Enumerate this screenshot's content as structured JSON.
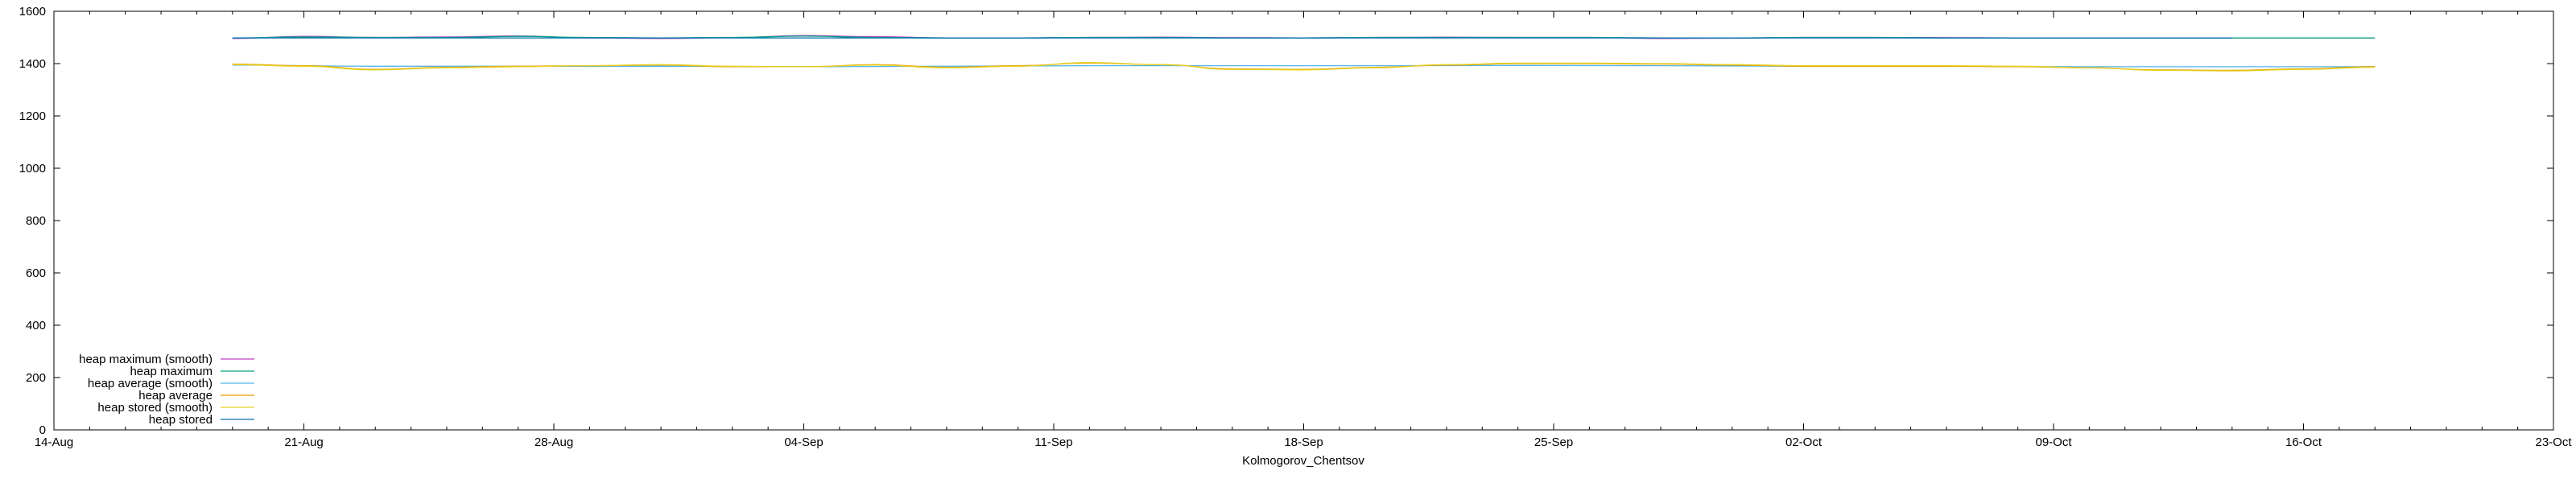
{
  "chart_data": {
    "type": "line",
    "title": "",
    "xlabel": "Kolmogorov_Chentsov",
    "ylabel": "",
    "x_ticks": [
      "14-Aug",
      "21-Aug",
      "28-Aug",
      "04-Sep",
      "11-Sep",
      "18-Sep",
      "25-Sep",
      "02-Oct",
      "09-Oct",
      "16-Oct",
      "23-Oct"
    ],
    "xlim": [
      "2023-08-14",
      "2023-10-23"
    ],
    "y_ticks": [
      0,
      200,
      400,
      600,
      800,
      1000,
      1200,
      1400,
      1600
    ],
    "ylim": [
      0,
      1600
    ],
    "grid": false,
    "legend_position": "bottom-left",
    "series": [
      {
        "name": "heap maximum (smooth)",
        "color": "#c040c0",
        "x": [
          "2023-08-19",
          "2023-08-21",
          "2023-08-23",
          "2023-08-25",
          "2023-08-27",
          "2023-08-29",
          "2023-08-31",
          "2023-09-02",
          "2023-09-04",
          "2023-09-06",
          "2023-09-08",
          "2023-09-10",
          "2023-09-12",
          "2023-09-14",
          "2023-09-16",
          "2023-09-18",
          "2023-09-20",
          "2023-09-22",
          "2023-09-24",
          "2023-09-26",
          "2023-09-28",
          "2023-09-30",
          "2023-10-02",
          "2023-10-04",
          "2023-10-06",
          "2023-10-08",
          "2023-10-10",
          "2023-10-12",
          "2023-10-14",
          "2023-10-16",
          "2023-10-18"
        ],
        "values": [
          1496,
          1504,
          1500,
          1502,
          1506,
          1498,
          1496,
          1499,
          1507,
          1503,
          1498,
          1498,
          1500,
          1501,
          1499,
          1498,
          1500,
          1501,
          1500,
          1500,
          1496,
          1497,
          1500,
          1500,
          1499,
          1498,
          1498,
          1498,
          1498,
          1498,
          1498
        ]
      },
      {
        "name": "heap maximum",
        "color": "#00a080",
        "x": [
          "2023-08-19",
          "2023-08-21",
          "2023-08-23",
          "2023-08-25",
          "2023-08-27",
          "2023-08-29",
          "2023-08-31",
          "2023-09-02",
          "2023-09-04",
          "2023-09-06",
          "2023-09-08",
          "2023-09-10",
          "2023-09-12",
          "2023-09-14",
          "2023-09-16",
          "2023-09-18",
          "2023-09-20",
          "2023-09-22",
          "2023-09-24",
          "2023-09-26",
          "2023-09-28",
          "2023-09-30",
          "2023-10-02",
          "2023-10-04",
          "2023-10-06",
          "2023-10-08",
          "2023-10-10",
          "2023-10-12",
          "2023-10-14",
          "2023-10-16",
          "2023-10-18"
        ],
        "values": [
          1498,
          1502,
          1500,
          1500,
          1504,
          1500,
          1498,
          1500,
          1505,
          1500,
          1498,
          1498,
          1500,
          1500,
          1498,
          1498,
          1500,
          1500,
          1500,
          1500,
          1498,
          1498,
          1500,
          1500,
          1498,
          1498,
          1498,
          1498,
          1498,
          1498,
          1498
        ]
      },
      {
        "name": "heap average (smooth)",
        "color": "#56b4e9",
        "x": [
          "2023-08-19",
          "2023-08-23",
          "2023-08-27",
          "2023-08-31",
          "2023-09-04",
          "2023-09-08",
          "2023-09-12",
          "2023-09-16",
          "2023-09-20",
          "2023-09-24",
          "2023-09-28",
          "2023-10-02",
          "2023-10-06",
          "2023-10-10",
          "2023-10-14",
          "2023-10-18"
        ],
        "values": [
          1394,
          1390,
          1390,
          1390,
          1388,
          1390,
          1392,
          1392,
          1392,
          1393,
          1392,
          1390,
          1390,
          1388,
          1388,
          1388
        ]
      },
      {
        "name": "heap average",
        "color": "#e69f00",
        "x": [
          "2023-08-19",
          "2023-08-21",
          "2023-08-23",
          "2023-08-25",
          "2023-08-27",
          "2023-08-29",
          "2023-08-31",
          "2023-09-02",
          "2023-09-04",
          "2023-09-06",
          "2023-09-08",
          "2023-09-10",
          "2023-09-12",
          "2023-09-14",
          "2023-09-16",
          "2023-09-18",
          "2023-09-20",
          "2023-09-22",
          "2023-09-24",
          "2023-09-26",
          "2023-09-28",
          "2023-09-30",
          "2023-10-02",
          "2023-10-04",
          "2023-10-06",
          "2023-10-08",
          "2023-10-10",
          "2023-10-12",
          "2023-10-14",
          "2023-10-16",
          "2023-10-18"
        ],
        "values": [
          1398,
          1392,
          1378,
          1386,
          1390,
          1392,
          1394,
          1388,
          1388,
          1396,
          1386,
          1392,
          1402,
          1396,
          1380,
          1378,
          1386,
          1394,
          1400,
          1400,
          1398,
          1394,
          1390,
          1390,
          1390,
          1388,
          1384,
          1376,
          1374,
          1380,
          1388
        ]
      },
      {
        "name": "heap stored (smooth)",
        "color": "#e6d020",
        "x": [
          "2023-08-19",
          "2023-08-21",
          "2023-08-23",
          "2023-08-25",
          "2023-08-27",
          "2023-08-29",
          "2023-08-31",
          "2023-09-02",
          "2023-09-04",
          "2023-09-06",
          "2023-09-08",
          "2023-09-10",
          "2023-09-12",
          "2023-09-14",
          "2023-09-16",
          "2023-09-18",
          "2023-09-20",
          "2023-09-22",
          "2023-09-24",
          "2023-09-26",
          "2023-09-28",
          "2023-09-30",
          "2023-10-02",
          "2023-10-04",
          "2023-10-06",
          "2023-10-08",
          "2023-10-10",
          "2023-10-12",
          "2023-10-14",
          "2023-10-16",
          "2023-10-18"
        ],
        "values": [
          1396,
          1390,
          1376,
          1384,
          1388,
          1392,
          1396,
          1390,
          1388,
          1394,
          1384,
          1390,
          1404,
          1396,
          1378,
          1376,
          1384,
          1396,
          1402,
          1402,
          1400,
          1396,
          1392,
          1392,
          1392,
          1390,
          1384,
          1374,
          1372,
          1378,
          1386
        ]
      },
      {
        "name": "heap stored",
        "color": "#0072b2",
        "x": [
          "2023-08-19",
          "2023-08-23",
          "2023-08-27",
          "2023-08-31",
          "2023-09-04",
          "2023-09-08",
          "2023-09-12",
          "2023-09-16",
          "2023-09-20",
          "2023-09-24",
          "2023-09-28",
          "2023-10-02",
          "2023-10-06",
          "2023-10-10",
          "2023-10-14"
        ],
        "values": [
          1498,
          1498,
          1498,
          1498,
          1498,
          1498,
          1498,
          1498,
          1498,
          1498,
          1498,
          1498,
          1498,
          1498,
          1498
        ]
      }
    ]
  }
}
